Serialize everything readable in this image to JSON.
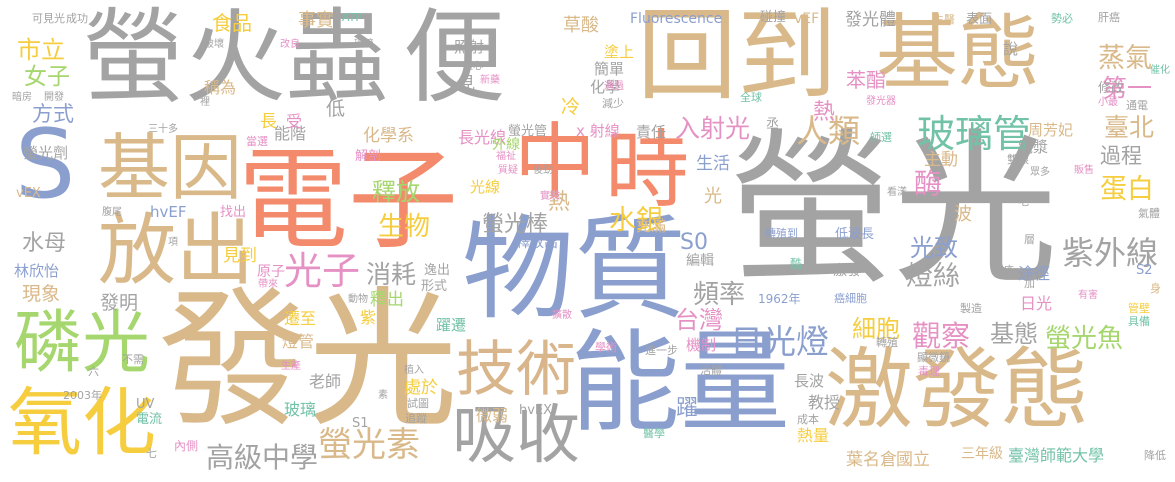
{
  "palette": {
    "gray": "#a3a3a3",
    "tan": "#d9b98a",
    "orange": "#f28a6b",
    "blue": "#8b9fcf",
    "green": "#a6d66e",
    "yellow": "#f5cd3e",
    "pink": "#e591c4",
    "teal": "#72c2a8",
    "brown": "#d9b58c",
    "lightgray": "#bcbcbc"
  },
  "words": [
    {
      "text": "螢光",
      "color": "gray"
    },
    {
      "text": "發光",
      "color": "tan"
    },
    {
      "text": "電子",
      "color": "orange"
    },
    {
      "text": "物質",
      "color": "blue"
    },
    {
      "text": "螢火蟲",
      "color": "gray"
    },
    {
      "text": "便",
      "color": "gray"
    },
    {
      "text": "回到",
      "color": "tan"
    },
    {
      "text": "基態",
      "color": "tan"
    },
    {
      "text": "能量",
      "color": "blue"
    },
    {
      "text": "激發態",
      "color": "tan"
    },
    {
      "text": "中",
      "color": "orange"
    },
    {
      "text": "時",
      "color": "orange"
    },
    {
      "text": "S",
      "color": "blue"
    },
    {
      "text": "基因",
      "color": "tan"
    },
    {
      "text": "放出",
      "color": "tan"
    },
    {
      "text": "磷光",
      "color": "green"
    },
    {
      "text": "氧化",
      "color": "yellow"
    },
    {
      "text": "技術",
      "color": "brown"
    },
    {
      "text": "吸收",
      "color": "gray"
    },
    {
      "text": "玻璃管",
      "color": "teal"
    },
    {
      "text": "光子",
      "color": "pink"
    },
    {
      "text": "蒸氣",
      "color": "tan"
    },
    {
      "text": "紫外線",
      "color": "gray"
    },
    {
      "text": "日光燈",
      "color": "blue"
    },
    {
      "text": "螢光素",
      "color": "tan"
    },
    {
      "text": "高級中學",
      "color": "gray"
    },
    {
      "text": "蛋白",
      "color": "yellow"
    },
    {
      "text": "人類",
      "color": "tan"
    },
    {
      "text": "入射光",
      "color": "pink"
    },
    {
      "text": "臺北",
      "color": "tan"
    },
    {
      "text": "第一",
      "color": "pink"
    },
    {
      "text": "觀察",
      "color": "pink"
    },
    {
      "text": "細胞",
      "color": "yellow"
    },
    {
      "text": "螢光魚",
      "color": "green"
    },
    {
      "text": "水銀",
      "color": "yellow"
    },
    {
      "text": "生物",
      "color": "yellow"
    },
    {
      "text": "釋放",
      "color": "green"
    },
    {
      "text": "消耗",
      "color": "gray"
    },
    {
      "text": "頻率",
      "color": "gray"
    },
    {
      "text": "燈絲",
      "color": "gray"
    },
    {
      "text": "光致",
      "color": "blue"
    },
    {
      "text": "台灣",
      "color": "pink"
    },
    {
      "text": "基態",
      "color": "gray"
    },
    {
      "text": "螢光棒",
      "color": "gray"
    },
    {
      "text": "S0",
      "color": "blue"
    },
    {
      "text": "市立",
      "color": "yellow"
    },
    {
      "text": "女子",
      "color": "green"
    },
    {
      "text": "方式",
      "color": "blue"
    },
    {
      "text": "食品",
      "color": "yellow"
    },
    {
      "text": "草酸",
      "color": "tan"
    },
    {
      "text": "苯酯",
      "color": "pink"
    },
    {
      "text": "Fluorescence",
      "color": "blue"
    },
    {
      "text": "發光體",
      "color": "gray"
    },
    {
      "text": "過程",
      "color": "gray"
    },
    {
      "text": "水母",
      "color": "gray"
    },
    {
      "text": "現象",
      "color": "tan"
    },
    {
      "text": "發明",
      "color": "gray"
    },
    {
      "text": "林欣怡",
      "color": "blue"
    },
    {
      "text": "葉名倉",
      "color": "tan"
    },
    {
      "text": "國立",
      "color": "tan"
    },
    {
      "text": "三年級",
      "color": "tan"
    },
    {
      "text": "臺灣師範大學",
      "color": "teal"
    },
    {
      "text": "教授",
      "color": "gray"
    },
    {
      "text": "熱量",
      "color": "yellow"
    },
    {
      "text": "微弱",
      "color": "tan"
    },
    {
      "text": "躍遷",
      "color": "teal"
    },
    {
      "text": "hvEX",
      "color": "gray"
    },
    {
      "text": "處於",
      "color": "yellow"
    },
    {
      "text": "老師",
      "color": "gray"
    },
    {
      "text": "玻璃",
      "color": "teal"
    },
    {
      "text": "S1",
      "color": "gray"
    },
    {
      "text": "燈管",
      "color": "tan"
    },
    {
      "text": "遷至",
      "color": "yellow"
    },
    {
      "text": "光線",
      "color": "yellow"
    },
    {
      "text": "長光線",
      "color": "pink"
    },
    {
      "text": "化學系",
      "color": "tan"
    },
    {
      "text": "能階",
      "color": "gray"
    },
    {
      "text": "化學",
      "color": "gray"
    },
    {
      "text": "成功",
      "color": "gray"
    },
    {
      "text": "事實",
      "color": "tan"
    },
    {
      "text": "碰撞",
      "color": "gray"
    },
    {
      "text": "表面",
      "color": "gray"
    },
    {
      "text": "肝癌",
      "color": "gray"
    },
    {
      "text": "可見光",
      "color": "gray"
    },
    {
      "text": "ATP",
      "color": "teal"
    },
    {
      "text": "生活",
      "color": "blue"
    },
    {
      "text": "主動",
      "color": "tan"
    },
    {
      "text": "酶",
      "color": "pink"
    },
    {
      "text": "熱",
      "color": "pink"
    },
    {
      "text": "冷",
      "color": "yellow"
    },
    {
      "text": "熱",
      "color": "tan"
    },
    {
      "text": "光",
      "color": "tan"
    },
    {
      "text": "波",
      "color": "tan"
    },
    {
      "text": "周芳妃",
      "color": "tan"
    },
    {
      "text": "電漿",
      "color": "gray"
    },
    {
      "text": "外線",
      "color": "green"
    },
    {
      "text": "螢光管",
      "color": "gray"
    },
    {
      "text": "x 射線",
      "color": "pink"
    },
    {
      "text": "責任",
      "color": "gray"
    },
    {
      "text": "塗上",
      "color": "yellow"
    },
    {
      "text": "簡單",
      "color": "gray"
    },
    {
      "text": "照射",
      "color": "gray"
    },
    {
      "text": "稱為",
      "color": "tan"
    },
    {
      "text": "低",
      "color": "gray"
    },
    {
      "text": "見",
      "color": "gray"
    },
    {
      "text": "受",
      "color": "pink"
    },
    {
      "text": "長",
      "color": "yellow"
    },
    {
      "text": "解剖",
      "color": "pink"
    },
    {
      "text": "螢光劑",
      "color": "gray"
    },
    {
      "text": "vEX",
      "color": "tan"
    },
    {
      "text": "hvEF",
      "color": "blue"
    },
    {
      "text": "見到",
      "color": "yellow"
    },
    {
      "text": "原子",
      "color": "pink"
    },
    {
      "text": "釋出",
      "color": "green"
    },
    {
      "text": "逸出",
      "color": "gray"
    },
    {
      "text": "形式",
      "color": "gray"
    },
    {
      "text": "釋放出",
      "color": "blue"
    },
    {
      "text": "編輯",
      "color": "gray"
    },
    {
      "text": "機制",
      "color": "pink"
    },
    {
      "text": "長波",
      "color": "gray"
    },
    {
      "text": "轉殖到",
      "color": "blue"
    },
    {
      "text": "低波長",
      "color": "blue"
    },
    {
      "text": "激發",
      "color": "gray"
    },
    {
      "text": "癌細胞",
      "color": "blue"
    },
    {
      "text": "1962年",
      "color": "blue"
    },
    {
      "text": "途徑",
      "color": "blue"
    },
    {
      "text": "日光",
      "color": "pink"
    },
    {
      "text": "S2",
      "color": "blue"
    },
    {
      "text": "UV",
      "color": "gray"
    },
    {
      "text": "電流",
      "color": "teal"
    },
    {
      "text": "2003年",
      "color": "gray"
    },
    {
      "text": "內側",
      "color": "pink"
    },
    {
      "text": "降低",
      "color": "gray"
    },
    {
      "text": "充滿",
      "color": "tan"
    },
    {
      "text": "vEF",
      "color": "tan"
    },
    {
      "text": "修改",
      "color": "gray"
    },
    {
      "text": "通電",
      "color": "gray"
    },
    {
      "text": "全球",
      "color": "teal"
    },
    {
      "text": "層",
      "color": "gray"
    },
    {
      "text": "氣體",
      "color": "gray"
    },
    {
      "text": "加",
      "color": "gray"
    },
    {
      "text": "身",
      "color": "tan"
    },
    {
      "text": "顯微鏡",
      "color": "gray"
    },
    {
      "text": "毒理",
      "color": "pink"
    },
    {
      "text": "成本",
      "color": "gray"
    },
    {
      "text": "轉殖",
      "color": "gray"
    },
    {
      "text": "管壁",
      "color": "yellow"
    },
    {
      "text": "具備",
      "color": "teal"
    },
    {
      "text": "活體",
      "color": "gray"
    },
    {
      "text": "進一步",
      "color": "gray"
    },
    {
      "text": "學術",
      "color": "pink"
    },
    {
      "text": "醫學",
      "color": "teal"
    },
    {
      "text": "減少",
      "color": "gray"
    },
    {
      "text": "說",
      "color": "gray"
    },
    {
      "text": "勢必",
      "color": "teal"
    },
    {
      "text": "生醫",
      "color": "tan"
    },
    {
      "text": "催化",
      "color": "teal"
    },
    {
      "text": "小最",
      "color": "pink"
    },
    {
      "text": "師選",
      "color": "teal"
    },
    {
      "text": "雙眼",
      "color": "gray"
    },
    {
      "text": "眾多",
      "color": "gray"
    },
    {
      "text": "販售",
      "color": "pink"
    },
    {
      "text": "看漾",
      "color": "gray"
    },
    {
      "text": "毛",
      "color": "gray"
    },
    {
      "text": "製造",
      "color": "gray"
    },
    {
      "text": "有害",
      "color": "pink"
    },
    {
      "text": "免疫",
      "color": "gray"
    },
    {
      "text": "酷",
      "color": "teal"
    },
    {
      "text": "擴散",
      "color": "pink"
    },
    {
      "text": "試圖",
      "color": "gray"
    },
    {
      "text": "追蹤",
      "color": "gray"
    },
    {
      "text": "實驗",
      "color": "pink"
    },
    {
      "text": "後勁",
      "color": "gray"
    },
    {
      "text": "福祉",
      "color": "pink"
    },
    {
      "text": "質疑",
      "color": "pink"
    },
    {
      "text": "不需",
      "color": "gray"
    },
    {
      "text": "六",
      "color": "gray"
    },
    {
      "text": "七",
      "color": "gray"
    },
    {
      "text": "動物",
      "color": "gray"
    },
    {
      "text": "植入",
      "color": "gray"
    },
    {
      "text": "素",
      "color": "gray"
    },
    {
      "text": "項",
      "color": "gray"
    },
    {
      "text": "找出",
      "color": "pink"
    },
    {
      "text": "腹尾",
      "color": "gray"
    },
    {
      "text": "三十多",
      "color": "gray"
    },
    {
      "text": "當選",
      "color": "pink"
    },
    {
      "text": "開發",
      "color": "gray"
    },
    {
      "text": "暗房",
      "color": "gray"
    },
    {
      "text": "改良",
      "color": "pink"
    },
    {
      "text": "破壞",
      "color": "gray"
    },
    {
      "text": "環境",
      "color": "gray"
    },
    {
      "text": "新藥",
      "color": "pink"
    },
    {
      "text": "通過",
      "color": "pink"
    },
    {
      "text": "擅心",
      "color": "gray"
    },
    {
      "text": "發光器",
      "color": "pink"
    },
    {
      "text": "裡",
      "color": "gray"
    },
    {
      "text": "生產",
      "color": "pink"
    },
    {
      "text": "帶來",
      "color": "pink"
    },
    {
      "text": "紫",
      "color": "yellow"
    },
    {
      "text": "躍",
      "color": "blue"
    },
    {
      "text": "丞",
      "color": "gray"
    }
  ]
}
